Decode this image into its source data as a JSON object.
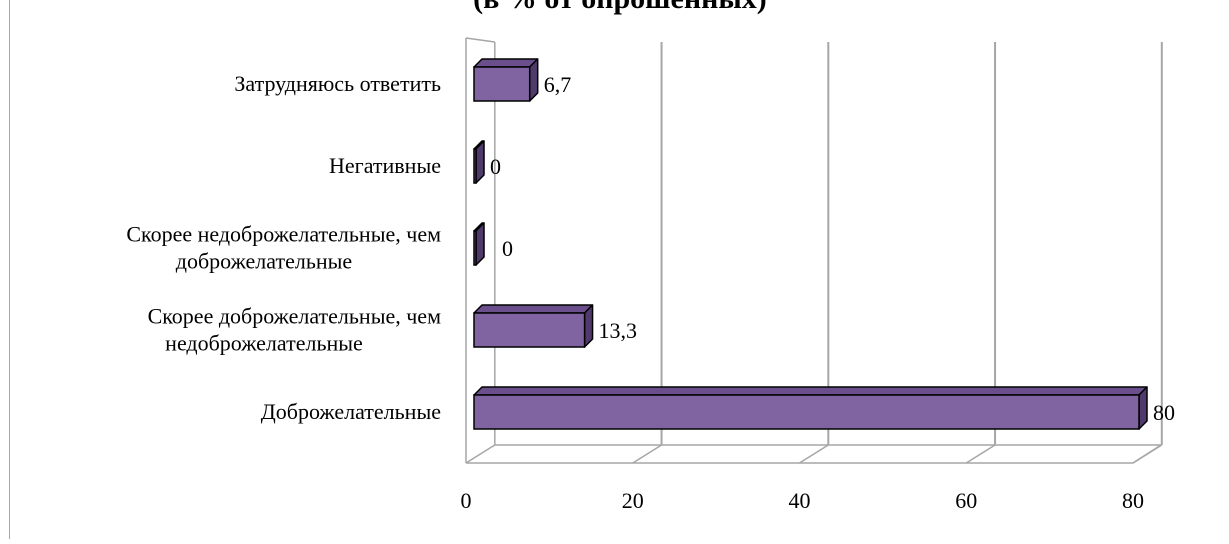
{
  "chart_data": {
    "type": "bar",
    "orientation": "horizontal",
    "style": "3d",
    "title": "(в % от опрошенных)",
    "categories": [
      [
        "Затрудняюсь ответить"
      ],
      [
        "Негативные"
      ],
      [
        "Скорее недоброжелательные, чем",
        "доброжелательные"
      ],
      [
        "Скорее доброжелательные, чем",
        "недоброжелательные"
      ],
      [
        "Доброжелательные"
      ]
    ],
    "values": [
      6.7,
      0,
      0,
      13.3,
      80
    ],
    "value_labels": [
      "6,7",
      "0",
      "0",
      "13,3",
      "80"
    ],
    "xlim": [
      0,
      80
    ],
    "xticks": [
      "0",
      "20",
      "40",
      "60",
      "80"
    ],
    "grid": true,
    "legend": "none",
    "colors": {
      "bar_front": "#8064a2",
      "bar_top": "#6a4f8c",
      "bar_side": "#4f3a6b",
      "grid": "#a6a6a6"
    }
  }
}
